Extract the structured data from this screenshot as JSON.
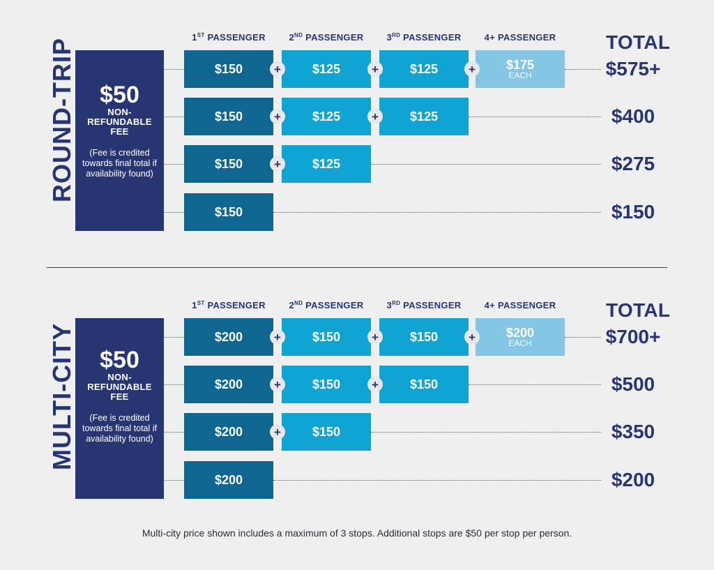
{
  "headers": {
    "p1": {
      "main": "1",
      "sup": "ST",
      "rest": " PASSENGER"
    },
    "p2": {
      "main": "2",
      "sup": "ND",
      "rest": " PASSENGER"
    },
    "p3": {
      "main": "3",
      "sup": "RD",
      "rest": " PASSENGER"
    },
    "p4": "4+ PASSENGER",
    "total": "TOTAL"
  },
  "plus_symbol": "+",
  "sections": [
    {
      "label": "ROUND-TRIP",
      "fee_amount": "$50",
      "fee_label_1": "NON-",
      "fee_label_2": "REFUNDABLE",
      "fee_label_3": "FEE",
      "fee_note": "(Fee is credited towards final total if availability found)",
      "rows": [
        {
          "cells": [
            "$150",
            "$125",
            "$125",
            "$175"
          ],
          "each": "EACH",
          "total": "$575+"
        },
        {
          "cells": [
            "$150",
            "$125",
            "$125"
          ],
          "total": "$400"
        },
        {
          "cells": [
            "$150",
            "$125"
          ],
          "total": "$275"
        },
        {
          "cells": [
            "$150"
          ],
          "total": "$150"
        }
      ]
    },
    {
      "label": "MULTI-CITY",
      "fee_amount": "$50",
      "fee_label_1": "NON-",
      "fee_label_2": "REFUNDABLE",
      "fee_label_3": "FEE",
      "fee_note": "(Fee is credited towards final total if availability found)",
      "rows": [
        {
          "cells": [
            "$200",
            "$150",
            "$150",
            "$200"
          ],
          "each": "EACH",
          "total": "$700+"
        },
        {
          "cells": [
            "$200",
            "$150",
            "$150"
          ],
          "total": "$500"
        },
        {
          "cells": [
            "$200",
            "$150"
          ],
          "total": "$350"
        },
        {
          "cells": [
            "$200"
          ],
          "total": "$200"
        }
      ]
    }
  ],
  "footnote": "Multi-city price shown includes a maximum of 3 stops. Additional stops are $50 per stop per person.",
  "colors": {
    "navy": "#283573",
    "first_passenger": "#0f6791",
    "other_passenger": "#10a4d2",
    "fourth_passenger": "#84c6e3",
    "background": "#efeff0"
  }
}
